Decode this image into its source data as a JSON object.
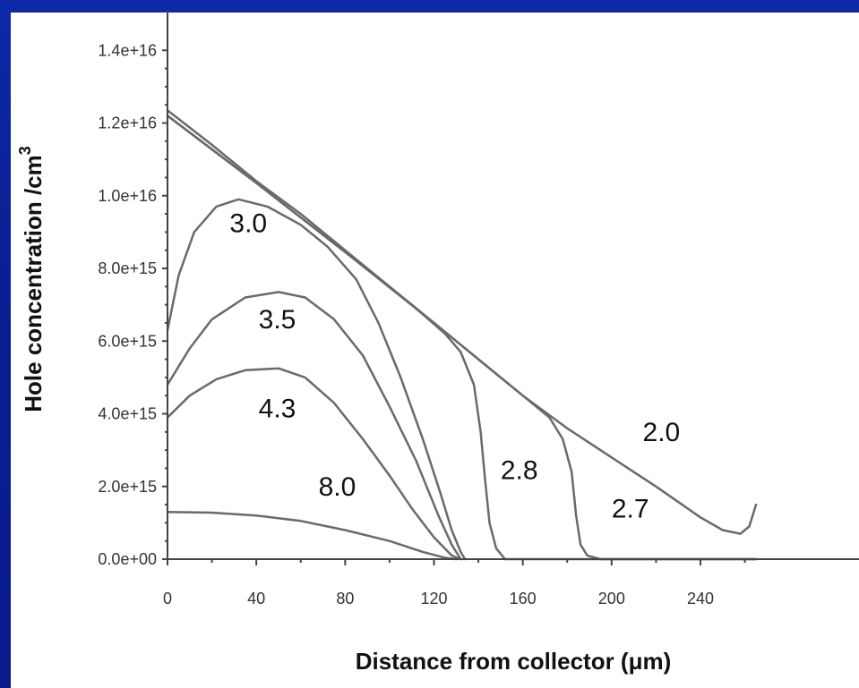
{
  "chart_data": {
    "type": "line",
    "xlabel": "Distance from collector (μm)",
    "ylabel": "Hole concentration  /cm",
    "ylabel_superscript": "3",
    "xlim": [
      0,
      260
    ],
    "ylim": [
      0,
      1.4e+16
    ],
    "x_ticks": [
      0,
      40,
      80,
      120,
      160,
      200,
      240
    ],
    "x_tick_labels": [
      "0",
      "40",
      "80",
      "120",
      "160",
      "200",
      "240"
    ],
    "y_ticks": [
      0,
      2000000000000000.0,
      4000000000000000.0,
      6000000000000000.0,
      8000000000000000.0,
      1e+16,
      1.2e+16,
      1.4e+16
    ],
    "y_tick_labels": [
      "0.0e+00",
      "2.0e+15",
      "4.0e+15",
      "6.0e+15",
      "8.0e+15",
      "1.0e+16",
      "1.2e+16",
      "1.4e+16"
    ],
    "series": [
      {
        "name": "2.0",
        "points": [
          [
            0,
            1.235e+16
          ],
          [
            20,
            1.14e+16
          ],
          [
            40,
            1.04e+16
          ],
          [
            60,
            9500000000000000.0
          ],
          [
            80,
            8500000000000000.0
          ],
          [
            100,
            7500000000000000.0
          ],
          [
            120,
            6500000000000000.0
          ],
          [
            140,
            5500000000000000.0
          ],
          [
            160,
            4500000000000000.0
          ],
          [
            180,
            3600000000000000.0
          ],
          [
            200,
            2800000000000000.0
          ],
          [
            220,
            2000000000000000.0
          ],
          [
            240,
            1150000000000000.0
          ],
          [
            250,
            800000000000000.0
          ],
          [
            258,
            700000000000000.0
          ],
          [
            262,
            900000000000000.0
          ],
          [
            265,
            1500000000000000.0
          ]
        ]
      },
      {
        "name": "2.7",
        "points": [
          [
            0,
            1.22e+16
          ],
          [
            40,
            1.035e+16
          ],
          [
            80,
            8450000000000000.0
          ],
          [
            120,
            6500000000000000.0
          ],
          [
            160,
            4500000000000000.0
          ],
          [
            172,
            3900000000000000.0
          ],
          [
            178,
            3300000000000000.0
          ],
          [
            182,
            2400000000000000.0
          ],
          [
            184,
            1200000000000000.0
          ],
          [
            186,
            400000000000000.0
          ],
          [
            189,
            100000000000000.0
          ],
          [
            195,
            0
          ],
          [
            265,
            0
          ]
        ]
      },
      {
        "name": "2.8",
        "points": [
          [
            0,
            1.22e+16
          ],
          [
            40,
            1.035e+16
          ],
          [
            80,
            8450000000000000.0
          ],
          [
            110,
            7000000000000000.0
          ],
          [
            125,
            6200000000000000.0
          ],
          [
            132,
            5700000000000000.0
          ],
          [
            138,
            4800000000000000.0
          ],
          [
            141,
            3500000000000000.0
          ],
          [
            143,
            2200000000000000.0
          ],
          [
            145,
            1000000000000000.0
          ],
          [
            148,
            300000000000000.0
          ],
          [
            152,
            0
          ],
          [
            265,
            0
          ]
        ]
      },
      {
        "name": "3.0",
        "points": [
          [
            0,
            6300000000000000.0
          ],
          [
            5,
            7800000000000000.0
          ],
          [
            12,
            9000000000000000.0
          ],
          [
            22,
            9700000000000000.0
          ],
          [
            32,
            9900000000000000.0
          ],
          [
            45,
            9700000000000000.0
          ],
          [
            60,
            9200000000000000.0
          ],
          [
            72,
            8600000000000000.0
          ],
          [
            85,
            7700000000000000.0
          ],
          [
            95,
            6500000000000000.0
          ],
          [
            105,
            5000000000000000.0
          ],
          [
            115,
            3300000000000000.0
          ],
          [
            123,
            1800000000000000.0
          ],
          [
            128,
            800000000000000.0
          ],
          [
            132,
            200000000000000.0
          ],
          [
            134,
            0
          ]
        ]
      },
      {
        "name": "3.5",
        "points": [
          [
            0,
            4800000000000000.0
          ],
          [
            10,
            5800000000000000.0
          ],
          [
            20,
            6600000000000000.0
          ],
          [
            35,
            7200000000000000.0
          ],
          [
            50,
            7350000000000000.0
          ],
          [
            62,
            7200000000000000.0
          ],
          [
            75,
            6600000000000000.0
          ],
          [
            88,
            5600000000000000.0
          ],
          [
            100,
            4200000000000000.0
          ],
          [
            112,
            2700000000000000.0
          ],
          [
            122,
            1200000000000000.0
          ],
          [
            128,
            400000000000000.0
          ],
          [
            132,
            0
          ]
        ]
      },
      {
        "name": "4.3",
        "points": [
          [
            0,
            3900000000000000.0
          ],
          [
            10,
            4500000000000000.0
          ],
          [
            22,
            4950000000000000.0
          ],
          [
            35,
            5200000000000000.0
          ],
          [
            50,
            5250000000000000.0
          ],
          [
            62,
            5000000000000000.0
          ],
          [
            75,
            4300000000000000.0
          ],
          [
            88,
            3300000000000000.0
          ],
          [
            100,
            2300000000000000.0
          ],
          [
            110,
            1400000000000000.0
          ],
          [
            120,
            600000000000000.0
          ],
          [
            128,
            100000000000000.0
          ],
          [
            132,
            0
          ]
        ]
      },
      {
        "name": "8.0",
        "points": [
          [
            0,
            1300000000000000.0
          ],
          [
            20,
            1280000000000000.0
          ],
          [
            40,
            1200000000000000.0
          ],
          [
            60,
            1050000000000000.0
          ],
          [
            80,
            800000000000000.0
          ],
          [
            100,
            500000000000000.0
          ],
          [
            115,
            200000000000000.0
          ],
          [
            125,
            40000000000000.0
          ],
          [
            130,
            0
          ]
        ]
      }
    ],
    "annotations": [
      {
        "text": "3.0",
        "x": 28,
        "y": 9000000000000000.0
      },
      {
        "text": "3.5",
        "x": 41,
        "y": 6350000000000000.0
      },
      {
        "text": "4.3",
        "x": 41,
        "y": 3900000000000000.0
      },
      {
        "text": "8.0",
        "x": 68,
        "y": 1750000000000000.0
      },
      {
        "text": "2.8",
        "x": 150,
        "y": 2200000000000000.0
      },
      {
        "text": "2.7",
        "x": 200,
        "y": 1150000000000000.0
      },
      {
        "text": "2.0",
        "x": 214,
        "y": 3250000000000000.0
      }
    ]
  }
}
